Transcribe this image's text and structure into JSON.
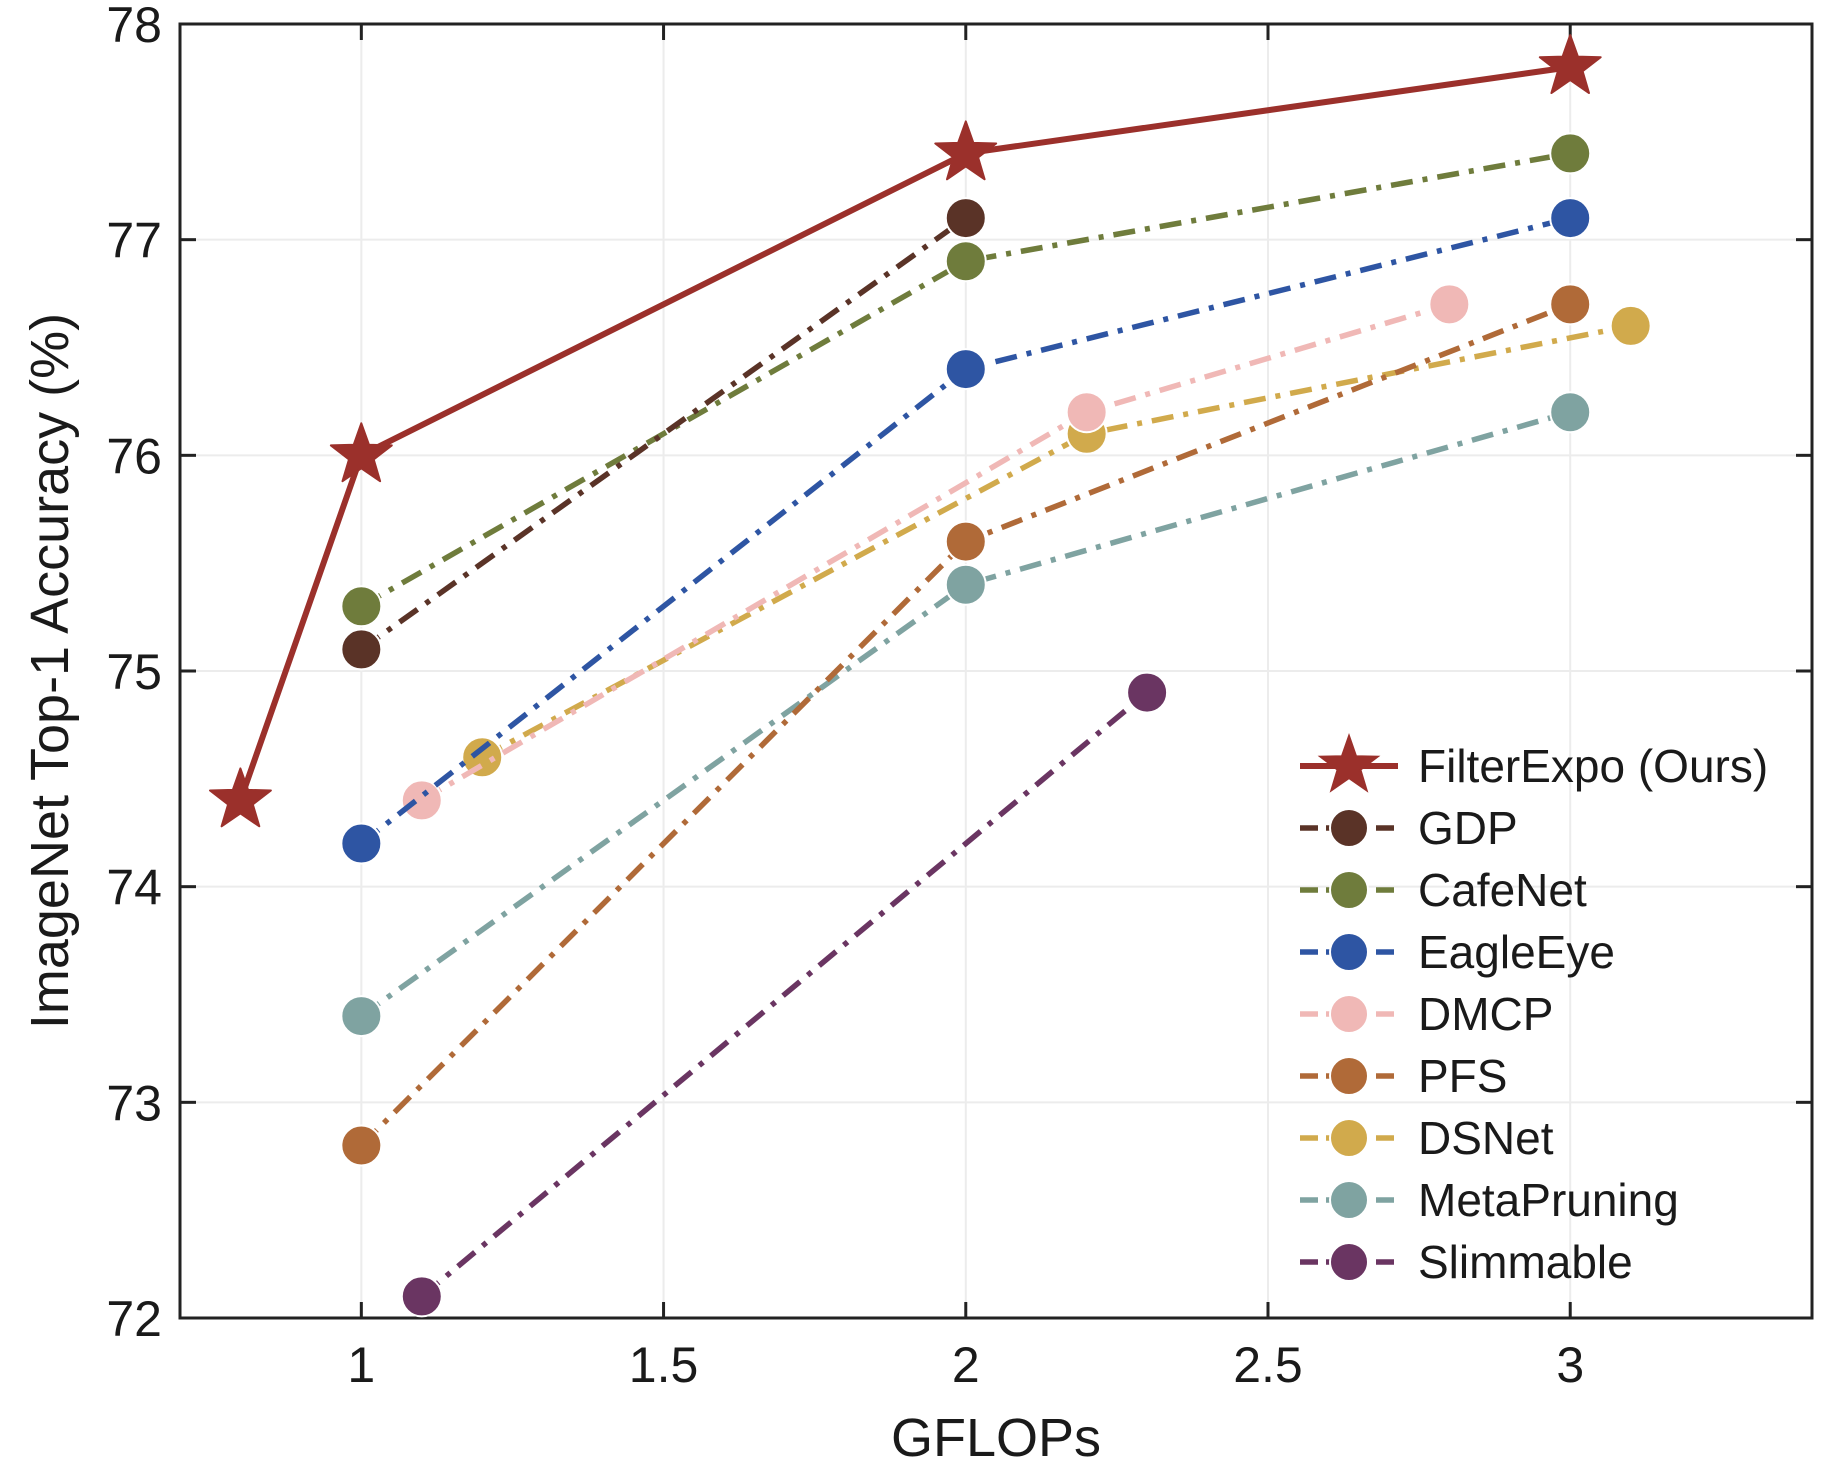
{
  "chart_data": {
    "type": "line",
    "xlabel": "GFLOPs",
    "ylabel": "ImageNet Top-1 Accuracy (%)",
    "xlim": [
      0.7,
      3.4
    ],
    "ylim": [
      72,
      78
    ],
    "xticks": [
      1,
      1.5,
      2,
      2.5,
      3
    ],
    "xtick_labels": [
      "1",
      "1.5",
      "2",
      "2.5",
      "3"
    ],
    "yticks": [
      72,
      73,
      74,
      75,
      76,
      77,
      78
    ],
    "ytick_labels": [
      "72",
      "73",
      "74",
      "75",
      "76",
      "77",
      "78"
    ],
    "grid": true,
    "legend_position": "bottom-right",
    "series": [
      {
        "name": "FilterExpo (Ours)",
        "color": "#9b302b",
        "marker": "star",
        "line": "solid",
        "x": [
          0.8,
          1.0,
          2.0,
          3.0
        ],
        "y": [
          74.4,
          76.0,
          77.4,
          77.8
        ]
      },
      {
        "name": "GDP",
        "color": "#5a3327",
        "marker": "circle",
        "line": "dashdot",
        "x": [
          1.0,
          2.0
        ],
        "y": [
          75.1,
          77.1
        ]
      },
      {
        "name": "CafeNet",
        "color": "#6f7c3c",
        "marker": "circle",
        "line": "dashdot",
        "x": [
          1.0,
          2.0,
          3.0
        ],
        "y": [
          75.3,
          76.9,
          77.4
        ]
      },
      {
        "name": "EagleEye",
        "color": "#2e55a3",
        "marker": "circle",
        "line": "dashdot",
        "x": [
          1.0,
          2.0,
          3.0
        ],
        "y": [
          74.2,
          76.4,
          77.1
        ]
      },
      {
        "name": "DMCP",
        "color": "#f0b8b6",
        "marker": "circle",
        "line": "dashdot",
        "x": [
          1.1,
          2.2,
          2.8
        ],
        "y": [
          74.4,
          76.2,
          76.7
        ]
      },
      {
        "name": "PFS",
        "color": "#b06a38",
        "marker": "circle",
        "line": "dashdot",
        "x": [
          1.0,
          2.0,
          3.0
        ],
        "y": [
          72.8,
          75.6,
          76.7
        ]
      },
      {
        "name": "DSNet",
        "color": "#d1aa4c",
        "marker": "circle",
        "line": "dashdot",
        "x": [
          1.2,
          2.2,
          3.1
        ],
        "y": [
          74.6,
          76.1,
          76.6
        ]
      },
      {
        "name": "MetaPruning",
        "color": "#7fa3a1",
        "marker": "circle",
        "line": "dashdot",
        "x": [
          1.0,
          2.0,
          3.0
        ],
        "y": [
          73.4,
          75.4,
          76.2
        ]
      },
      {
        "name": "Slimmable",
        "color": "#6a3562",
        "marker": "circle",
        "line": "dashdot",
        "x": [
          1.1,
          2.3
        ],
        "y": [
          72.1,
          74.9
        ]
      }
    ]
  }
}
